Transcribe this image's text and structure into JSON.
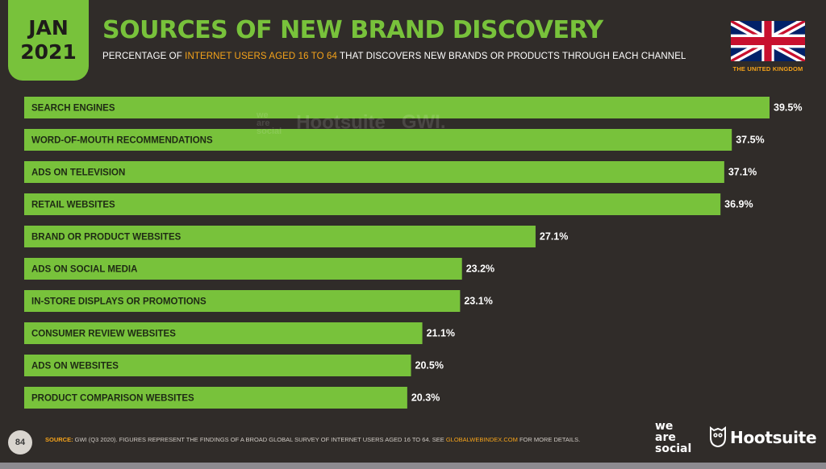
{
  "header": {
    "month": "JAN",
    "year": "2021",
    "title": "SOURCES OF NEW BRAND DISCOVERY",
    "subtitle_pre": "PERCENTAGE OF ",
    "subtitle_highlight": "INTERNET USERS AGED 16 TO 64",
    "subtitle_post": " THAT DISCOVERS NEW BRANDS OR PRODUCTS THROUGH EACH CHANNEL",
    "country": "THE UNITED KINGDOM"
  },
  "watermark": {
    "we": "we",
    "are": "are",
    "social": "social",
    "hootsuite": "Hootsuite",
    "gwi": "GWI."
  },
  "footer": {
    "page_number": "84",
    "source_label": "SOURCE:",
    "source_text": " GWI (Q3 2020). FIGURES REPRESENT THE FINDINGS OF A BROAD GLOBAL SURVEY OF INTERNET USERS AGED 16 TO 64. SEE ",
    "source_link": "GLOBALWEBINDEX.COM",
    "source_end": " FOR MORE DETAILS.",
    "logo_we": "we",
    "logo_are": "are",
    "logo_social": "social",
    "logo_hootsuite": "Hootsuite"
  },
  "colors": {
    "bar": "#78c23b",
    "background": "#302c29",
    "accent_orange": "#f5a31a",
    "value_text": "#ffffff",
    "label_text": "#1e2a14"
  },
  "chart_data": {
    "type": "bar",
    "orientation": "horizontal",
    "categories": [
      "SEARCH ENGINES",
      "WORD-OF-MOUTH RECOMMENDATIONS",
      "ADS ON TELEVISION",
      "RETAIL WEBSITES",
      "BRAND OR PRODUCT WEBSITES",
      "ADS ON SOCIAL MEDIA",
      "IN-STORE DISPLAYS OR PROMOTIONS",
      "CONSUMER REVIEW WEBSITES",
      "ADS ON WEBSITES",
      "PRODUCT COMPARISON WEBSITES"
    ],
    "values": [
      39.5,
      37.5,
      37.1,
      36.9,
      27.1,
      23.2,
      23.1,
      21.1,
      20.5,
      20.3
    ],
    "value_labels": [
      "39.5%",
      "37.5%",
      "37.1%",
      "36.9%",
      "27.1%",
      "23.2%",
      "23.1%",
      "21.1%",
      "20.5%",
      "20.3%"
    ],
    "xlim": [
      0,
      39.5
    ],
    "grid": false,
    "legend": "none"
  }
}
